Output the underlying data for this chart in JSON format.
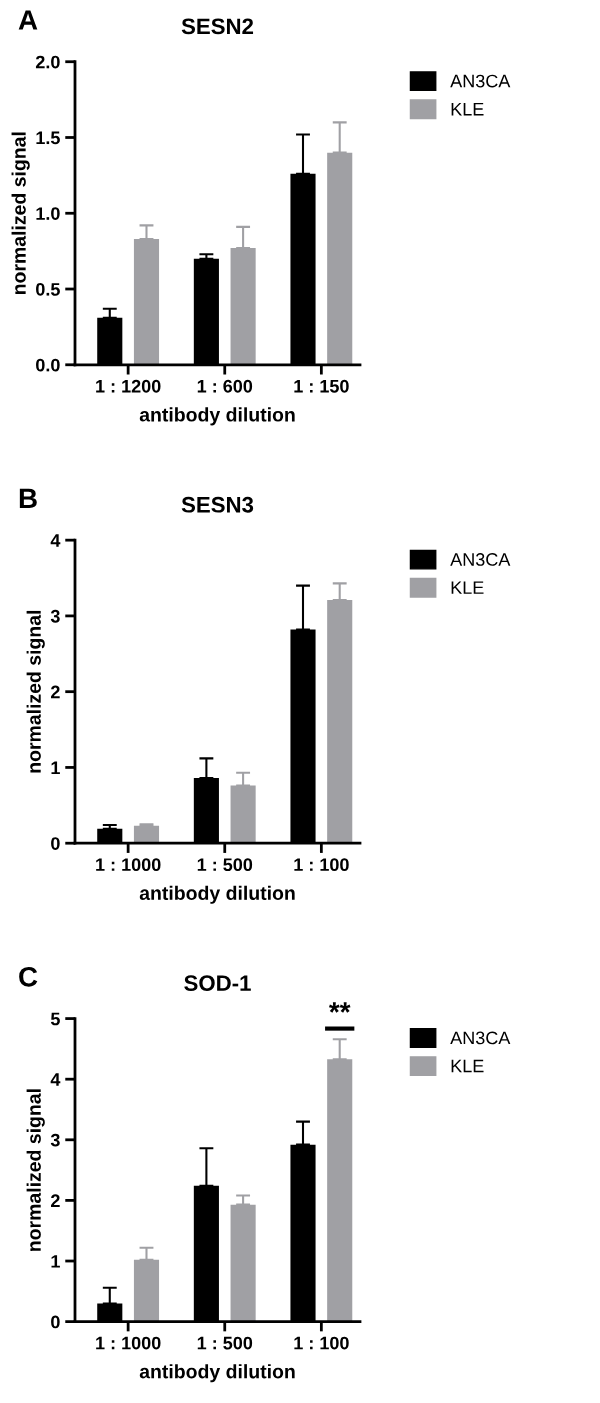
{
  "chart_data": [
    {
      "type": "bar",
      "title": "SESN2",
      "xlabel": "antibody dilution",
      "ylabel": "normalized signal",
      "categories": [
        "1 : 1200",
        "1 : 600",
        "1 : 150"
      ],
      "ylim": [
        0,
        2.0
      ],
      "yticks": [
        {
          "value": 0,
          "label": "0.0"
        },
        {
          "value": 0.5,
          "label": "0.5"
        },
        {
          "value": 1.0,
          "label": "1.0"
        },
        {
          "value": 1.5,
          "label": "1.5"
        },
        {
          "value": 2.0,
          "label": "2.0"
        }
      ],
      "legend": "top right",
      "grid": false,
      "annotations": [
        "A"
      ],
      "series": [
        {
          "name": "AN3CA",
          "color": "#000000",
          "values": [
            0.31,
            0.7,
            1.26
          ],
          "errors": [
            [
              0.31,
              0.37
            ],
            [
              0.7,
              0.73
            ],
            [
              1.26,
              1.52
            ]
          ]
        },
        {
          "name": "KLE",
          "color": "#a0a0a4",
          "values": [
            0.83,
            0.77,
            1.4
          ],
          "errors": [
            [
              0.83,
              0.92
            ],
            [
              0.77,
              0.91
            ],
            [
              1.4,
              1.6
            ]
          ]
        }
      ]
    },
    {
      "type": "bar",
      "title": "SESN3",
      "xlabel": "antibody dilution",
      "ylabel": "normalized signal",
      "categories": [
        "1 : 1000",
        "1 : 500",
        "1 : 100"
      ],
      "ylim": [
        0,
        4
      ],
      "yticks": [
        0,
        1,
        2,
        3,
        4
      ],
      "legend": "top right",
      "grid": false,
      "annotations": [
        "B"
      ],
      "series": [
        {
          "name": "AN3CA",
          "color": "#000000",
          "values": [
            0.19,
            0.86,
            2.82
          ],
          "errors": [
            [
              0.19,
              0.24
            ],
            [
              0.86,
              1.12
            ],
            [
              2.82,
              3.4
            ]
          ]
        },
        {
          "name": "KLE",
          "color": "#a0a0a4",
          "values": [
            0.23,
            0.76,
            3.21
          ],
          "errors": [
            [
              0.23,
              0.25
            ],
            [
              0.76,
              0.93
            ],
            [
              3.21,
              3.43
            ]
          ]
        }
      ]
    },
    {
      "type": "bar",
      "title": "SOD-1",
      "xlabel": "antibody dilution",
      "ylabel": "normalized signal",
      "categories": [
        "1 : 1000",
        "1 : 500",
        "1 : 100"
      ],
      "ylim": [
        0,
        5
      ],
      "yticks": [
        0,
        1,
        2,
        3,
        4,
        5
      ],
      "legend": "top right",
      "grid": false,
      "annotations": [
        "C",
        "**"
      ],
      "series": [
        {
          "name": "AN3CA",
          "color": "#000000",
          "values": [
            0.3,
            2.24,
            2.92
          ],
          "errors": [
            [
              0.3,
              0.56
            ],
            [
              2.24,
              2.86
            ],
            [
              2.92,
              3.3
            ]
          ]
        },
        {
          "name": "KLE",
          "color": "#a0a0a4",
          "values": [
            1.02,
            1.93,
            4.33
          ],
          "errors": [
            [
              1.02,
              1.22
            ],
            [
              1.93,
              2.08
            ],
            [
              4.33,
              4.66
            ]
          ]
        }
      ]
    }
  ]
}
